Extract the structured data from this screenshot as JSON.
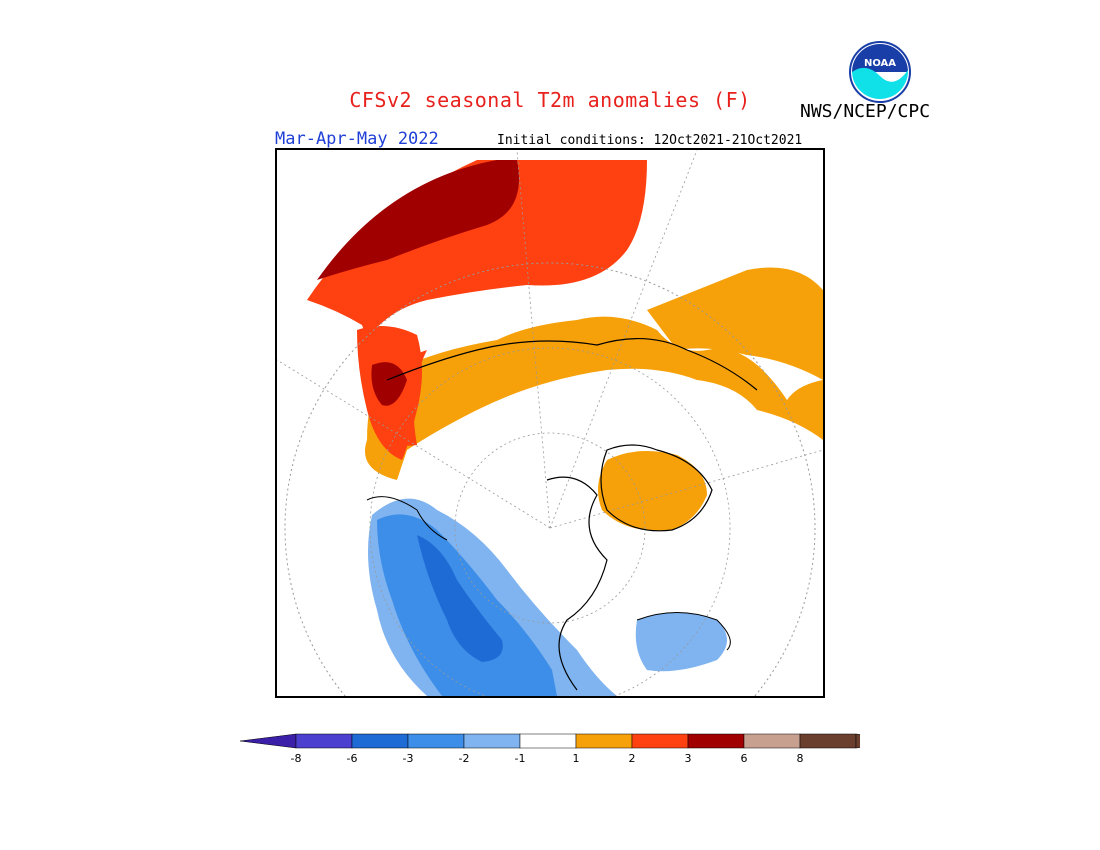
{
  "header": {
    "title": "CFSv2 seasonal T2m anomalies (F)",
    "season": "Mar-Apr-May 2022",
    "initial_conditions": "Initial conditions: 12Oct2021-21Oct2021",
    "agency": "NWS/NCEP/CPC",
    "logo_text": "NOAA"
  },
  "colorbar": {
    "labels": [
      "-8",
      "-6",
      "-3",
      "-2",
      "-1",
      "1",
      "2",
      "3",
      "6",
      "8"
    ],
    "colors": [
      "#3b1fa8",
      "#4a3fcf",
      "#1f6bd6",
      "#3d8ee8",
      "#7fb4f0",
      "#ffffff",
      "#f7a10a",
      "#ff4010",
      "#a00000",
      "#c8a090",
      "#6b3f2e"
    ],
    "low_arrow_color": "#3b1fa8",
    "high_arrow_color": "#6b3f2e"
  },
  "map": {
    "projection": "North polar stereographic",
    "unit": "F"
  }
}
